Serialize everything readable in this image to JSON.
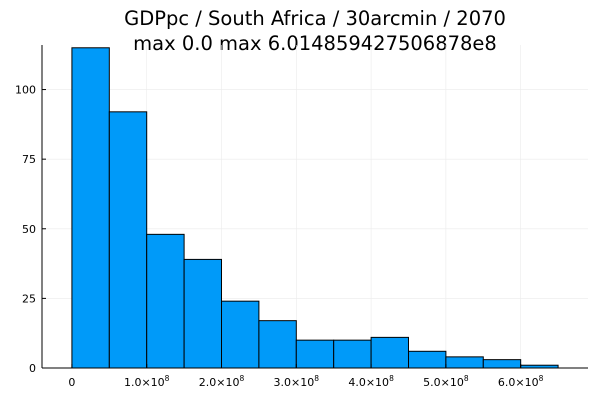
{
  "chart_data": {
    "type": "bar",
    "title": "GDPpc / South Africa / 30arcmin / 2070",
    "subtitle": "max 0.0  max 6.014859427506878e8",
    "xlabel": "",
    "ylabel": "",
    "bins": [
      {
        "start": 0.0,
        "end": 0.5,
        "count": 115
      },
      {
        "start": 0.5,
        "end": 1.0,
        "count": 92
      },
      {
        "start": 1.0,
        "end": 1.5,
        "count": 48
      },
      {
        "start": 1.5,
        "end": 2.0,
        "count": 39
      },
      {
        "start": 2.0,
        "end": 2.5,
        "count": 24
      },
      {
        "start": 2.5,
        "end": 3.0,
        "count": 17
      },
      {
        "start": 3.0,
        "end": 3.5,
        "count": 10
      },
      {
        "start": 3.5,
        "end": 4.0,
        "count": 10
      },
      {
        "start": 4.0,
        "end": 4.5,
        "count": 11
      },
      {
        "start": 4.5,
        "end": 5.0,
        "count": 6
      },
      {
        "start": 5.0,
        "end": 5.5,
        "count": 4
      },
      {
        "start": 5.5,
        "end": 6.0,
        "count": 3
      },
      {
        "start": 6.0,
        "end": 6.5,
        "count": 1
      }
    ],
    "x_unit_scale": "1e8",
    "xlim": [
      -0.4,
      6.9
    ],
    "ylim": [
      0,
      116
    ],
    "x_ticks": [
      {
        "value": 0,
        "mantissa": "0",
        "exponent": ""
      },
      {
        "value": 1,
        "mantissa": "1.0×10",
        "exponent": "8"
      },
      {
        "value": 2,
        "mantissa": "2.0×10",
        "exponent": "8"
      },
      {
        "value": 3,
        "mantissa": "3.0×10",
        "exponent": "8"
      },
      {
        "value": 4,
        "mantissa": "4.0×10",
        "exponent": "8"
      },
      {
        "value": 5,
        "mantissa": "5.0×10",
        "exponent": "8"
      },
      {
        "value": 6,
        "mantissa": "6.0×10",
        "exponent": "8"
      }
    ],
    "y_ticks": [
      {
        "value": 0,
        "label": "0"
      },
      {
        "value": 25,
        "label": "25"
      },
      {
        "value": 50,
        "label": "50"
      },
      {
        "value": 75,
        "label": "75"
      },
      {
        "value": 100,
        "label": "100"
      }
    ],
    "grid": true,
    "bar_color": "#009af9",
    "bar_edge_color": "#000000",
    "grid_color": "#ebebeb"
  }
}
